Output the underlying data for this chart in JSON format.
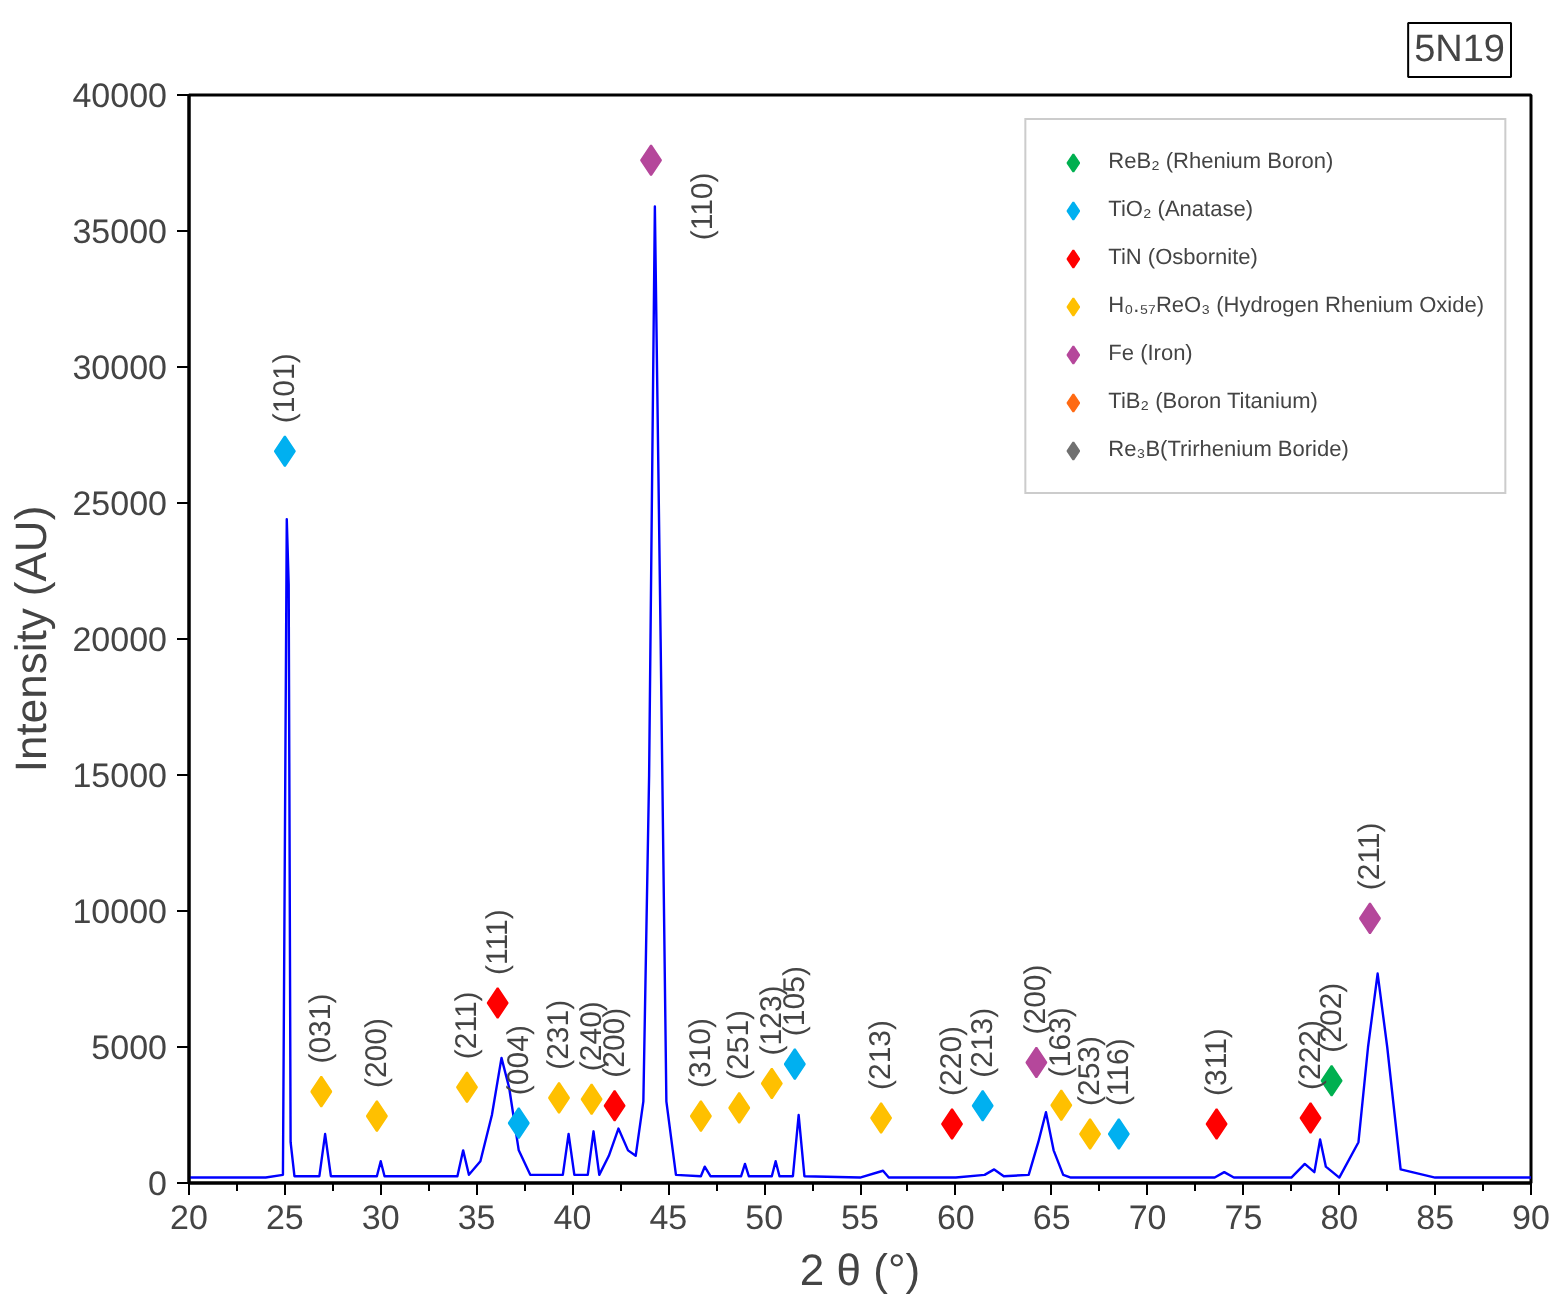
{
  "chart_data": {
    "type": "line",
    "xlabel": "2 θ (°)",
    "ylabel": "Intensity (AU)",
    "xlim": [
      20,
      90
    ],
    "xticks": [
      20,
      25,
      30,
      35,
      40,
      45,
      50,
      55,
      60,
      65,
      70,
      75,
      80,
      85,
      90
    ],
    "ylim": [
      0,
      40000
    ],
    "yticks": [
      0,
      5000,
      10000,
      15000,
      20000,
      25000,
      30000,
      35000,
      40000
    ],
    "legend": "top right",
    "series": [
      {
        "color": "#0000ff",
        "x": [
          20,
          22,
          24,
          24.9,
          25.1,
          25.2,
          25.3,
          25.5,
          26.8,
          27.1,
          27.4,
          29.8,
          30.0,
          30.2,
          34.0,
          34.3,
          34.6,
          35.2,
          35.8,
          36.3,
          36.7,
          37.2,
          37.8,
          39.5,
          39.8,
          40.1,
          40.8,
          41.1,
          41.4,
          41.9,
          42.4,
          42.9,
          43.3,
          43.7,
          44.0,
          44.3,
          44.6,
          44.9,
          45.4,
          46.7,
          46.9,
          47.2,
          48.8,
          49.0,
          49.2,
          50.4,
          50.6,
          50.8,
          51.5,
          51.8,
          52.1,
          55,
          56.2,
          56.5,
          60,
          61.5,
          62,
          62.5,
          63.8,
          64.3,
          64.7,
          65.1,
          65.6,
          66,
          70,
          73.5,
          74,
          74.5,
          77.5,
          78.2,
          78.7,
          79.0,
          79.3,
          80.0,
          81,
          81.5,
          82.0,
          82.5,
          83.2,
          85,
          90
        ],
        "values": [
          200,
          200,
          200,
          300,
          24400,
          22000,
          1500,
          250,
          250,
          1800,
          250,
          250,
          800,
          250,
          250,
          1200,
          300,
          800,
          2500,
          4600,
          3500,
          1200,
          300,
          300,
          1800,
          300,
          300,
          1900,
          300,
          1000,
          2000,
          1200,
          1000,
          3000,
          15000,
          35900,
          20000,
          3000,
          300,
          250,
          600,
          250,
          250,
          700,
          250,
          250,
          800,
          250,
          250,
          2500,
          250,
          200,
          450,
          200,
          200,
          300,
          500,
          250,
          300,
          1500,
          2600,
          1200,
          300,
          200,
          200,
          200,
          400,
          200,
          200,
          700,
          400,
          1600,
          600,
          200,
          1500,
          5000,
          7700,
          5000,
          500,
          200,
          200
        ]
      },
      {
        "type": "scatter",
        "marker": "diamond",
        "name": "ReB₂ (Rhenium Boron)",
        "color": "#00b050",
        "x": [
          79.6
        ],
        "values": [
          3760
        ]
      },
      {
        "type": "scatter",
        "marker": "diamond",
        "name": "TiO₂ (Anatase)",
        "color": "#00b0f0",
        "x": [
          25.0,
          37.2,
          51.6,
          61.4,
          68.5
        ],
        "values": [
          26900,
          2200,
          4370,
          2840,
          1800
        ]
      },
      {
        "type": "scatter",
        "marker": "diamond",
        "name": "TiN (Osbornite)",
        "color": "#ff0000",
        "x": [
          36.1,
          42.2,
          59.8,
          73.6,
          78.5
        ],
        "values": [
          6620,
          2840,
          2170,
          2170,
          2390
        ]
      },
      {
        "type": "scatter",
        "marker": "diamond",
        "name": "H₀.₅₇ReO₃ (Hydrogen Rhenium Oxide)",
        "color": "#ffc000",
        "x": [
          26.9,
          29.8,
          34.5,
          39.3,
          41.0,
          46.7,
          48.7,
          50.4,
          56.1,
          65.5,
          67.0
        ],
        "values": [
          3360,
          2460,
          3520,
          3130,
          3080,
          2460,
          2760,
          3660,
          2390,
          2860,
          1800
        ]
      },
      {
        "type": "scatter",
        "marker": "diamond",
        "name": "Fe (Iron)",
        "color": "#b5479b",
        "x": [
          44.1,
          64.2,
          81.6
        ],
        "values": [
          37600,
          4430,
          9730
        ]
      },
      {
        "type": "scatter",
        "marker": "diamond",
        "name": "TiB₂ (Boron Titanium)",
        "color": "#ff6a13"
      },
      {
        "type": "scatter",
        "marker": "diamond",
        "name": "Re₃B(Trirhenium Boride)",
        "color": "#707070"
      }
    ],
    "annotations": [
      "5N19",
      {
        "text": "(101)",
        "x": 25.0,
        "y": 26900
      },
      {
        "text": "(031)",
        "x": 26.9,
        "y": 3360
      },
      {
        "text": "(200)",
        "x": 29.8,
        "y": 2460
      },
      {
        "text": "(211)",
        "x": 34.5,
        "y": 3520
      },
      {
        "text": "(111)",
        "x": 36.1,
        "y": 6620
      },
      {
        "text": "(004)",
        "x": 37.2,
        "y": 2200
      },
      {
        "text": "(231)",
        "x": 39.3,
        "y": 3130
      },
      {
        "text": "(240)",
        "x": 41.0,
        "y": 3080
      },
      {
        "text": "(200)",
        "x": 42.2,
        "y": 2840
      },
      {
        "text": "(110)",
        "x": 44.1,
        "y": 37600
      },
      {
        "text": "(310)",
        "x": 46.7,
        "y": 2460
      },
      {
        "text": "(251)",
        "x": 48.7,
        "y": 2760
      },
      {
        "text": "(123)",
        "x": 50.4,
        "y": 3660
      },
      {
        "text": "(105)",
        "x": 51.6,
        "y": 4370
      },
      {
        "text": "(213)",
        "x": 56.1,
        "y": 2390
      },
      {
        "text": "(220)",
        "x": 59.8,
        "y": 2170
      },
      {
        "text": "(213)",
        "x": 61.4,
        "y": 2840
      },
      {
        "text": "(200)",
        "x": 64.2,
        "y": 4430
      },
      {
        "text": "(163)",
        "x": 65.5,
        "y": 2860
      },
      {
        "text": "(253)",
        "x": 67.0,
        "y": 1800
      },
      {
        "text": "(116)",
        "x": 68.5,
        "y": 1800
      },
      {
        "text": "(311)",
        "x": 73.6,
        "y": 2170
      },
      {
        "text": "(222)",
        "x": 78.5,
        "y": 2390
      },
      {
        "text": "(202)",
        "x": 79.6,
        "y": 3760
      },
      {
        "text": "(211)",
        "x": 81.6,
        "y": 9730
      }
    ]
  }
}
